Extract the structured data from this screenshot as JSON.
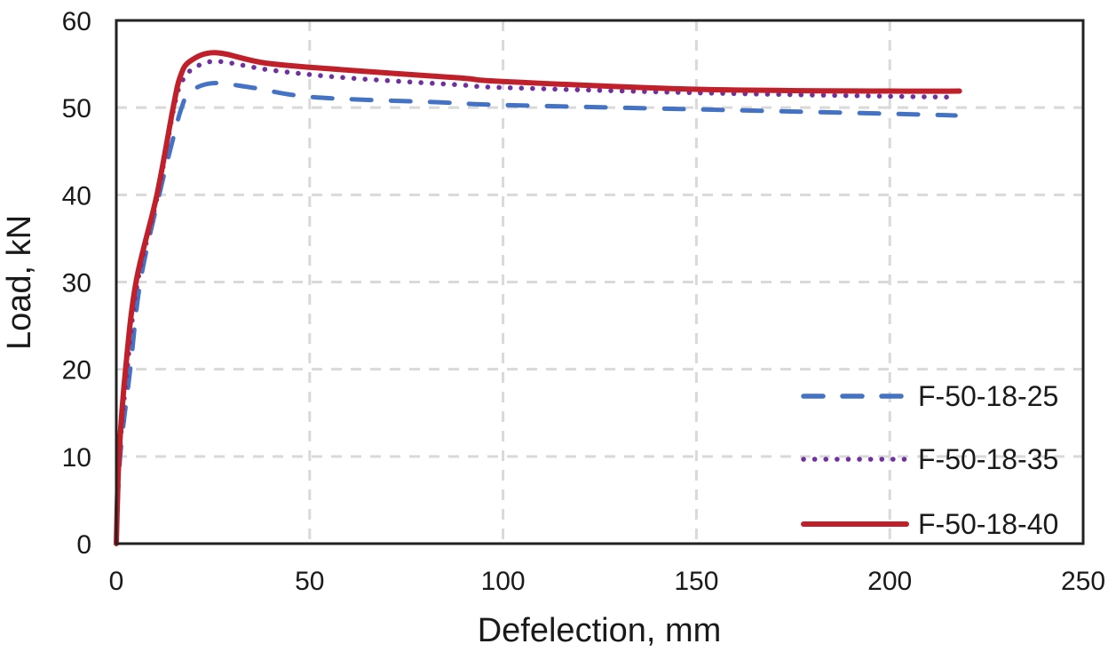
{
  "chart_data": {
    "type": "line",
    "title": "",
    "xlabel": "Defelection, mm",
    "ylabel": "Load, kN",
    "xlim": [
      0,
      250
    ],
    "ylim": [
      0,
      60
    ],
    "xticks": [
      "0",
      "50",
      "100",
      "150",
      "200",
      "250"
    ],
    "yticks": [
      "0",
      "10",
      "20",
      "30",
      "40",
      "50",
      "60"
    ],
    "grid": true,
    "legend_position": "bottom-right",
    "series": [
      {
        "name": "F-50-18-25",
        "color": "#4472C4",
        "style": "dashed",
        "x": [
          0,
          1,
          3.6,
          6.2,
          11.1,
          15,
          16.9,
          19,
          25,
          35,
          51,
          84,
          100,
          150,
          200,
          217
        ],
        "y": [
          0,
          10,
          20,
          30,
          40,
          47,
          50,
          51.8,
          52.8,
          52.3,
          51.2,
          50.6,
          50.3,
          49.8,
          49.3,
          49.1
        ]
      },
      {
        "name": "F-50-18-35",
        "color": "#7030A0",
        "style": "dotted",
        "x": [
          0,
          0.8,
          2.8,
          5.5,
          10.7,
          14.9,
          17,
          20,
          26,
          40,
          60,
          89,
          100,
          150,
          200,
          217
        ],
        "y": [
          0,
          10,
          20,
          30,
          40,
          50,
          53,
          54.5,
          55.3,
          54.3,
          53.4,
          52.6,
          52.3,
          51.7,
          51.3,
          51.2
        ]
      },
      {
        "name": "F-50-18-40",
        "color": "#C0202A",
        "style": "solid",
        "x": [
          0,
          0.7,
          2.4,
          5.1,
          10.5,
          14.7,
          16.5,
          19,
          25.7,
          38.8,
          60,
          89,
          100,
          150,
          200,
          218
        ],
        "y": [
          0,
          10,
          20,
          30,
          40,
          50,
          53.5,
          55.3,
          56.3,
          55.1,
          54.3,
          53.4,
          53,
          52.1,
          51.9,
          51.9
        ]
      }
    ]
  }
}
